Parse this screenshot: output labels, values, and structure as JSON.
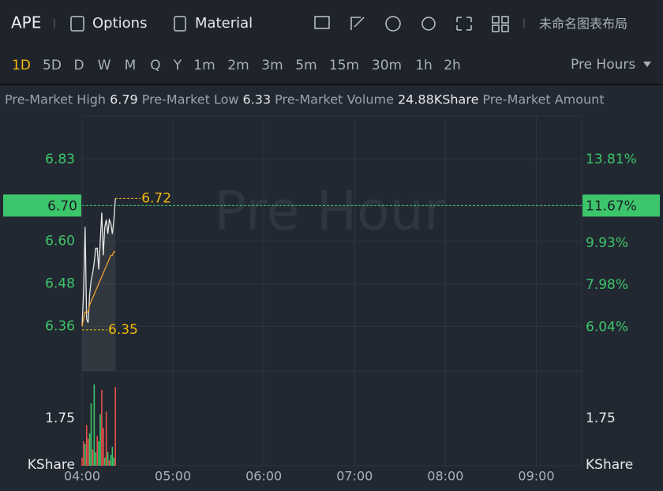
{
  "toolbar": {
    "symbol": "APE",
    "options": "Options",
    "material": "Material",
    "layout_name": "未命名图表布局"
  },
  "intervals": {
    "items": [
      "1D",
      "5D",
      "D",
      "W",
      "M",
      "Q",
      "Y",
      "1m",
      "2m",
      "3m",
      "5m",
      "15m",
      "30m",
      "1h",
      "2h"
    ],
    "active": 0,
    "session": "Pre Hours"
  },
  "stats": [
    {
      "label": "Pre-Market High",
      "value": "6.79"
    },
    {
      "label": "Pre-Market Low",
      "value": "6.33"
    },
    {
      "label": "Pre-Market Volume",
      "value": "24.88KShare"
    },
    {
      "label": "Pre-Market Amount"
    }
  ],
  "chart_data": {
    "type": "line",
    "watermark": "Pre Hour",
    "x": [
      0,
      1,
      2,
      3,
      4,
      5,
      6,
      7,
      8,
      9,
      10,
      11,
      12,
      13,
      14,
      15,
      16,
      17,
      18,
      19,
      20,
      21,
      22
    ],
    "xlim": [
      0,
      330
    ],
    "xticks": [
      {
        "value": 0,
        "label": "04:00"
      },
      {
        "value": 60,
        "label": "05:00"
      },
      {
        "value": 120,
        "label": "06:00"
      },
      {
        "value": 180,
        "label": "07:00"
      },
      {
        "value": 240,
        "label": "08:00"
      },
      {
        "value": 300,
        "label": "09:00"
      }
    ],
    "series": [
      {
        "color": "#e6e6e6",
        "values": [
          6.36,
          6.46,
          6.64,
          6.38,
          6.37,
          6.45,
          6.49,
          6.51,
          6.54,
          6.58,
          6.58,
          6.52,
          6.6,
          6.68,
          6.56,
          6.64,
          6.66,
          6.62,
          6.66,
          6.65,
          6.62,
          6.66,
          6.72
        ]
      },
      {
        "color": "#f0a030",
        "values": [
          6.36,
          6.38,
          6.4,
          6.4,
          6.4,
          6.42,
          6.43,
          6.44,
          6.45,
          6.46,
          6.47,
          6.48,
          6.49,
          6.5,
          6.51,
          6.52,
          6.53,
          6.54,
          6.55,
          6.56,
          6.56,
          6.57,
          6.57
        ]
      }
    ],
    "ylim": [
      6.234,
      6.952
    ],
    "yticks": [
      6.83,
      {
        "value": 6.7,
        "label": "6.70"
      },
      {
        "value": 6.6,
        "label": "6.60"
      },
      6.48,
      6.36
    ],
    "y2lim": [
      4.0,
      15.82
    ],
    "y2ticks": [
      {
        "value": 13.81,
        "label": "13.81%"
      },
      {
        "value": 11.67,
        "label": "11.67%"
      },
      {
        "value": 9.93,
        "label": "9.93%"
      },
      {
        "value": 7.98,
        "label": "7.98%"
      },
      {
        "value": 6.04,
        "label": "6.04%"
      }
    ],
    "current": {
      "value": 6.7,
      "label": "6.70",
      "change": {
        "value": 11.67,
        "label": "11.67%"
      }
    },
    "annotations": [
      {
        "x": 22,
        "value": 6.72
      },
      {
        "x": 0,
        "value": 6.35
      }
    ],
    "volume": {
      "values": [
        0.3,
        0.9,
        0.8,
        1.5,
        1.0,
        1.2,
        2.3,
        0.6,
        3.0,
        0.5,
        1.1,
        0.9,
        1.9,
        2.8,
        1.4,
        0.3,
        2.0,
        0.5,
        0.2,
        0.4,
        0.7,
        0.3,
        2.9
      ],
      "colors": [
        "#e8504a",
        "#e8504a",
        "#3cc56a",
        "#e8504a",
        "#e8504a",
        "#3cc56a",
        "#3cc56a",
        "#e8504a",
        "#3cc56a",
        "#3cc56a",
        "#e8504a",
        "#3cc56a",
        "#3cc56a",
        "#e8504a",
        "#e8504a",
        "#3cc56a",
        "#e8504a",
        "#3cc56a",
        "#e8504a",
        "#3cc56a",
        "#3cc56a",
        "#3cc56a",
        "#e8504a"
      ],
      "ylim": [
        0,
        3.35
      ],
      "yticks": [
        1.75
      ],
      "unit": "KShare"
    }
  }
}
